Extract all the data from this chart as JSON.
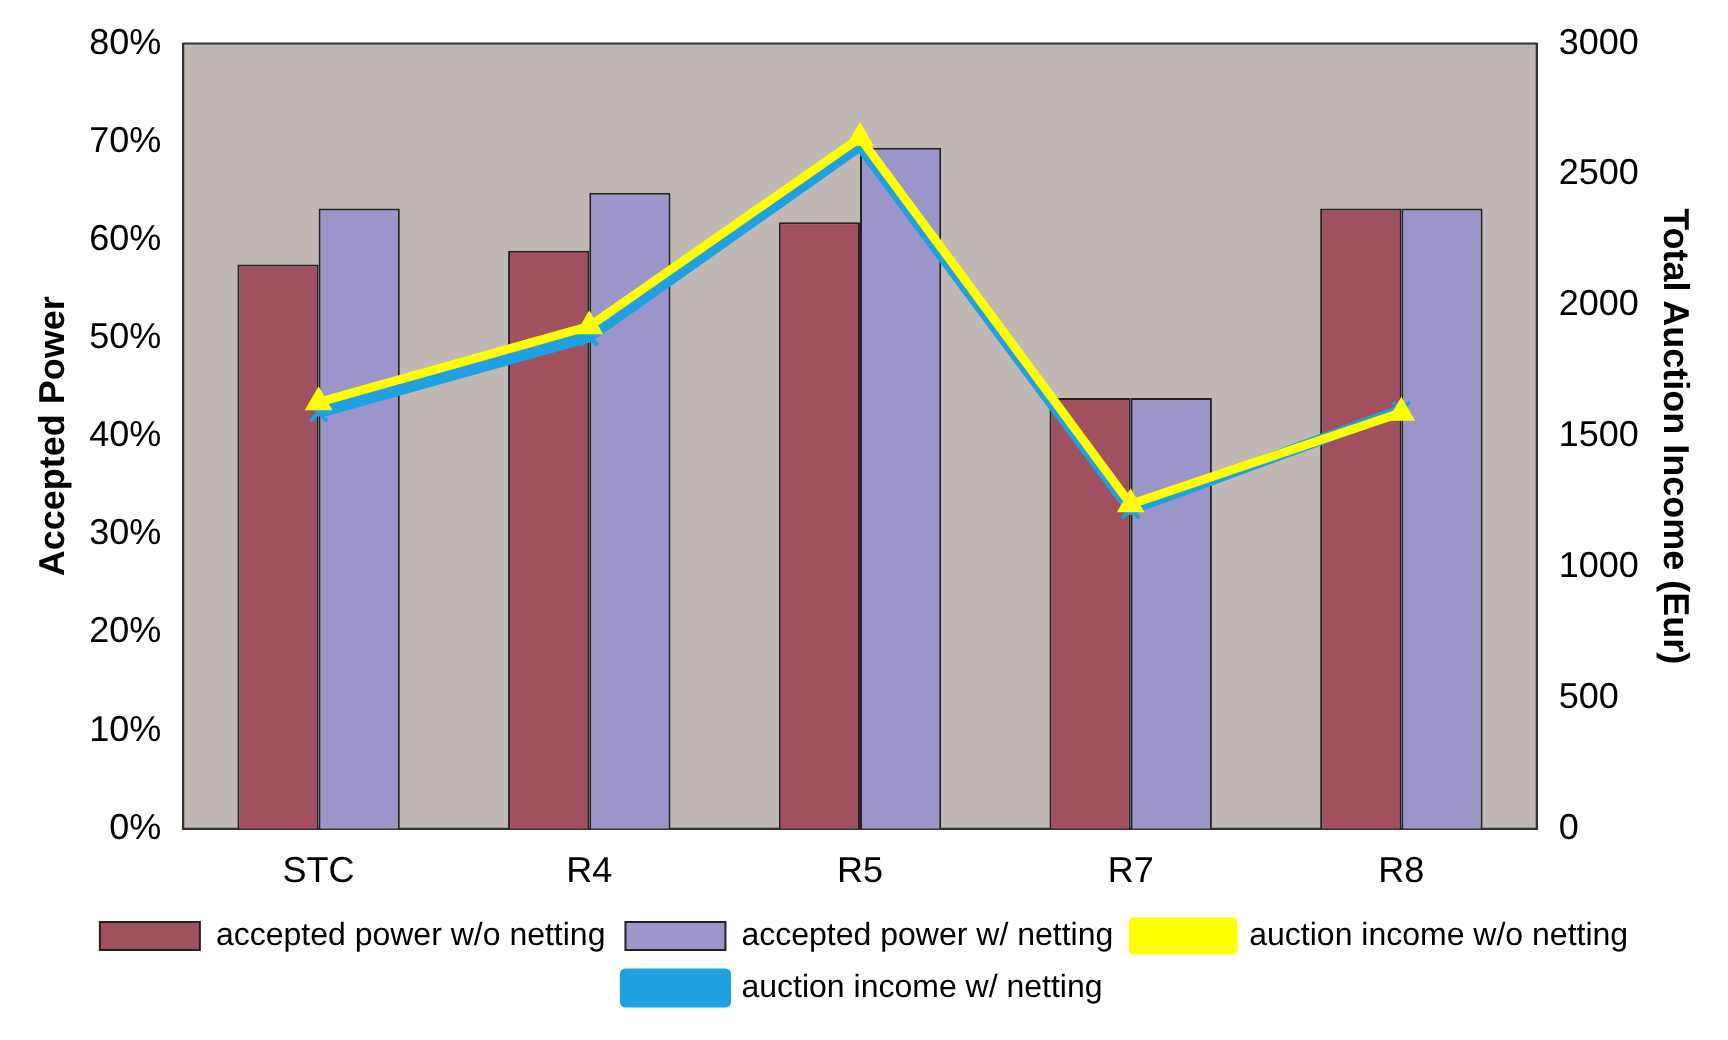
{
  "chart_data": {
    "type": "bar",
    "categories": [
      "STC",
      "R4",
      "R5",
      "R7",
      "R8"
    ],
    "ylabel": "Accepted Power",
    "y2label": "Total Auction Income (Eur)",
    "ylim": [
      0,
      0.8
    ],
    "yticks": [
      {
        "value": 0,
        "label": "0%"
      },
      {
        "value": 0.1,
        "label": "10%"
      },
      {
        "value": 0.2,
        "label": "20%"
      },
      {
        "value": 0.3,
        "label": "30%"
      },
      {
        "value": 0.4,
        "label": "40%"
      },
      {
        "value": 0.5,
        "label": "50%"
      },
      {
        "value": 0.6,
        "label": "60%"
      },
      {
        "value": 0.7,
        "label": "70%"
      },
      {
        "value": 0.8,
        "label": "80%"
      }
    ],
    "y2lim": [
      0,
      3000
    ],
    "y2ticks": [
      0,
      500,
      1000,
      1500,
      2000,
      2500,
      3000
    ],
    "grid": false,
    "legend": "bottom",
    "series": [
      {
        "name": "accepted power w/o netting",
        "color": "#a0505e",
        "values": [
          0.575,
          0.589,
          0.618,
          0.439,
          0.632
        ]
      },
      {
        "name": "accepted power w/ netting",
        "color": "#9b95c9",
        "values": [
          0.632,
          0.648,
          0.694,
          0.439,
          0.632
        ]
      },
      {
        "name": "auction income w/o netting",
        "type": "line",
        "axis": "y2",
        "marker": "triangle",
        "color": "#ffff00",
        "values": [
          1630,
          1920,
          2640,
          1240,
          1590
        ]
      },
      {
        "name": "auction income w/ netting",
        "type": "line",
        "axis": "y2",
        "marker": "cross",
        "color": "#1fa0e0",
        "values": [
          1590,
          1880,
          2610,
          1220,
          1600
        ]
      }
    ]
  }
}
